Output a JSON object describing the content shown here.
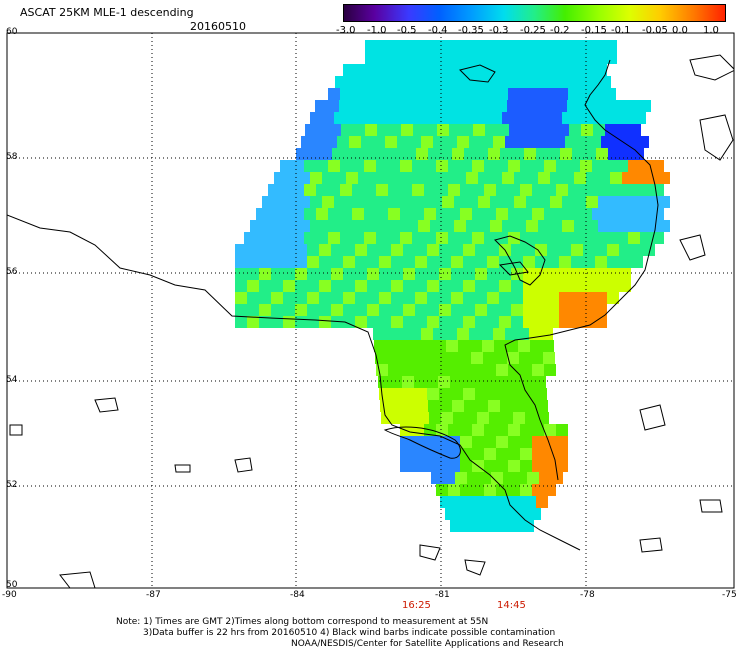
{
  "header": {
    "title": "ASCAT 25KM MLE-1 descending",
    "date": "20160510"
  },
  "colorbar": {
    "labels": [
      "-3.0",
      "-1.0",
      "-0.5",
      "-0.4",
      "-0.35",
      "-0.3",
      "-0.25",
      "-0.2",
      "-0.15",
      "-0.1",
      "-0.05",
      "0.0",
      "1.0"
    ],
    "colors": [
      "#2a0040",
      "#5a00a0",
      "#3a3aff",
      "#0060ff",
      "#0099ff",
      "#00ddee",
      "#22ee88",
      "#44ee00",
      "#99ff00",
      "#ddff00",
      "#ffcc00",
      "#ff7700",
      "#ff2200"
    ]
  },
  "map": {
    "lat_labels": [
      "60",
      "58",
      "56",
      "54",
      "52",
      "50"
    ],
    "lon_labels": [
      "-90",
      "-87",
      "-84",
      "-81",
      "-78",
      "-75"
    ],
    "land_color": "#ffffff",
    "coast_color": "#000000"
  },
  "times": {
    "t1": "16:25",
    "t2": "14:45"
  },
  "notes": {
    "line1": "Note: 1) Times are GMT 2)Times along bottom correspond to measurement at 55N",
    "line2": "3)Data buffer is 22 hrs from 20160510 4) Black wind barbs indicate possible contamination",
    "line3": "NOAA/NESDIS/Center for Satellite Applications and Research"
  }
}
